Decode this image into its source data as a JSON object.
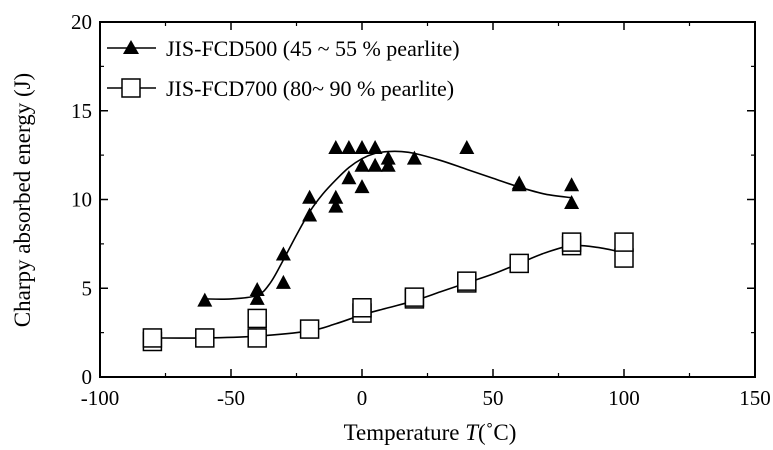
{
  "chart_data": {
    "type": "scatter",
    "xlabel": "Temperature",
    "xlabel_var": "T",
    "xlabel_unit": "(˚C)",
    "ylabel": "Charpy absorbed energy (J)",
    "xlim": [
      -100,
      150
    ],
    "ylim": [
      0,
      20
    ],
    "xticks": [
      -100,
      -50,
      0,
      50,
      100,
      150
    ],
    "yticks": [
      0,
      5,
      10,
      15,
      20
    ],
    "grid": false,
    "legend_position": "top-left",
    "series": [
      {
        "name": "JIS-FCD500 (45 ~ 55 % pearlite)",
        "marker": "filled-triangle",
        "color": "#000000",
        "points": [
          [
            -60,
            4.3
          ],
          [
            -40,
            4.4
          ],
          [
            -40,
            4.9
          ],
          [
            -30,
            5.3
          ],
          [
            -30,
            6.9
          ],
          [
            -20,
            9.1
          ],
          [
            -20,
            10.1
          ],
          [
            -10,
            9.6
          ],
          [
            -10,
            10.1
          ],
          [
            -10,
            12.9
          ],
          [
            -5,
            11.2
          ],
          [
            -5,
            12.9
          ],
          [
            0,
            10.7
          ],
          [
            0,
            11.9
          ],
          [
            0,
            12.9
          ],
          [
            5,
            11.9
          ],
          [
            5,
            12.9
          ],
          [
            10,
            11.9
          ],
          [
            10,
            12.3
          ],
          [
            20,
            12.3
          ],
          [
            40,
            12.9
          ],
          [
            60,
            10.8
          ],
          [
            60,
            10.9
          ],
          [
            80,
            10.8
          ],
          [
            80,
            9.8
          ]
        ],
        "fit": [
          [
            -60,
            4.4
          ],
          [
            -50,
            4.4
          ],
          [
            -40,
            4.6
          ],
          [
            -35,
            5.3
          ],
          [
            -30,
            6.6
          ],
          [
            -25,
            8.0
          ],
          [
            -20,
            9.3
          ],
          [
            -15,
            10.3
          ],
          [
            -10,
            11.1
          ],
          [
            -5,
            11.8
          ],
          [
            0,
            12.3
          ],
          [
            5,
            12.6
          ],
          [
            10,
            12.7
          ],
          [
            15,
            12.7
          ],
          [
            20,
            12.6
          ],
          [
            30,
            12.2
          ],
          [
            40,
            11.7
          ],
          [
            50,
            11.2
          ],
          [
            60,
            10.7
          ],
          [
            70,
            10.3
          ],
          [
            80,
            10.1
          ]
        ]
      },
      {
        "name": "JIS-FCD700 (80~ 90 % pearlite)",
        "marker": "open-square",
        "color": "#000000",
        "points": [
          [
            -80,
            2.0
          ],
          [
            -80,
            2.2
          ],
          [
            -60,
            2.2
          ],
          [
            -40,
            2.2
          ],
          [
            -40,
            3.3
          ],
          [
            -20,
            2.7
          ],
          [
            0,
            3.6
          ],
          [
            0,
            3.9
          ],
          [
            20,
            4.4
          ],
          [
            20,
            4.5
          ],
          [
            40,
            5.3
          ],
          [
            40,
            5.4
          ],
          [
            60,
            6.4
          ],
          [
            80,
            7.4
          ],
          [
            80,
            7.6
          ],
          [
            100,
            6.7
          ],
          [
            100,
            7.6
          ]
        ],
        "fit": [
          [
            -80,
            2.2
          ],
          [
            -60,
            2.2
          ],
          [
            -40,
            2.3
          ],
          [
            -20,
            2.6
          ],
          [
            -10,
            3.0
          ],
          [
            0,
            3.5
          ],
          [
            10,
            3.9
          ],
          [
            20,
            4.3
          ],
          [
            30,
            4.8
          ],
          [
            40,
            5.3
          ],
          [
            50,
            5.8
          ],
          [
            60,
            6.4
          ],
          [
            70,
            7.0
          ],
          [
            80,
            7.4
          ],
          [
            90,
            7.3
          ],
          [
            100,
            7.0
          ]
        ]
      }
    ]
  }
}
